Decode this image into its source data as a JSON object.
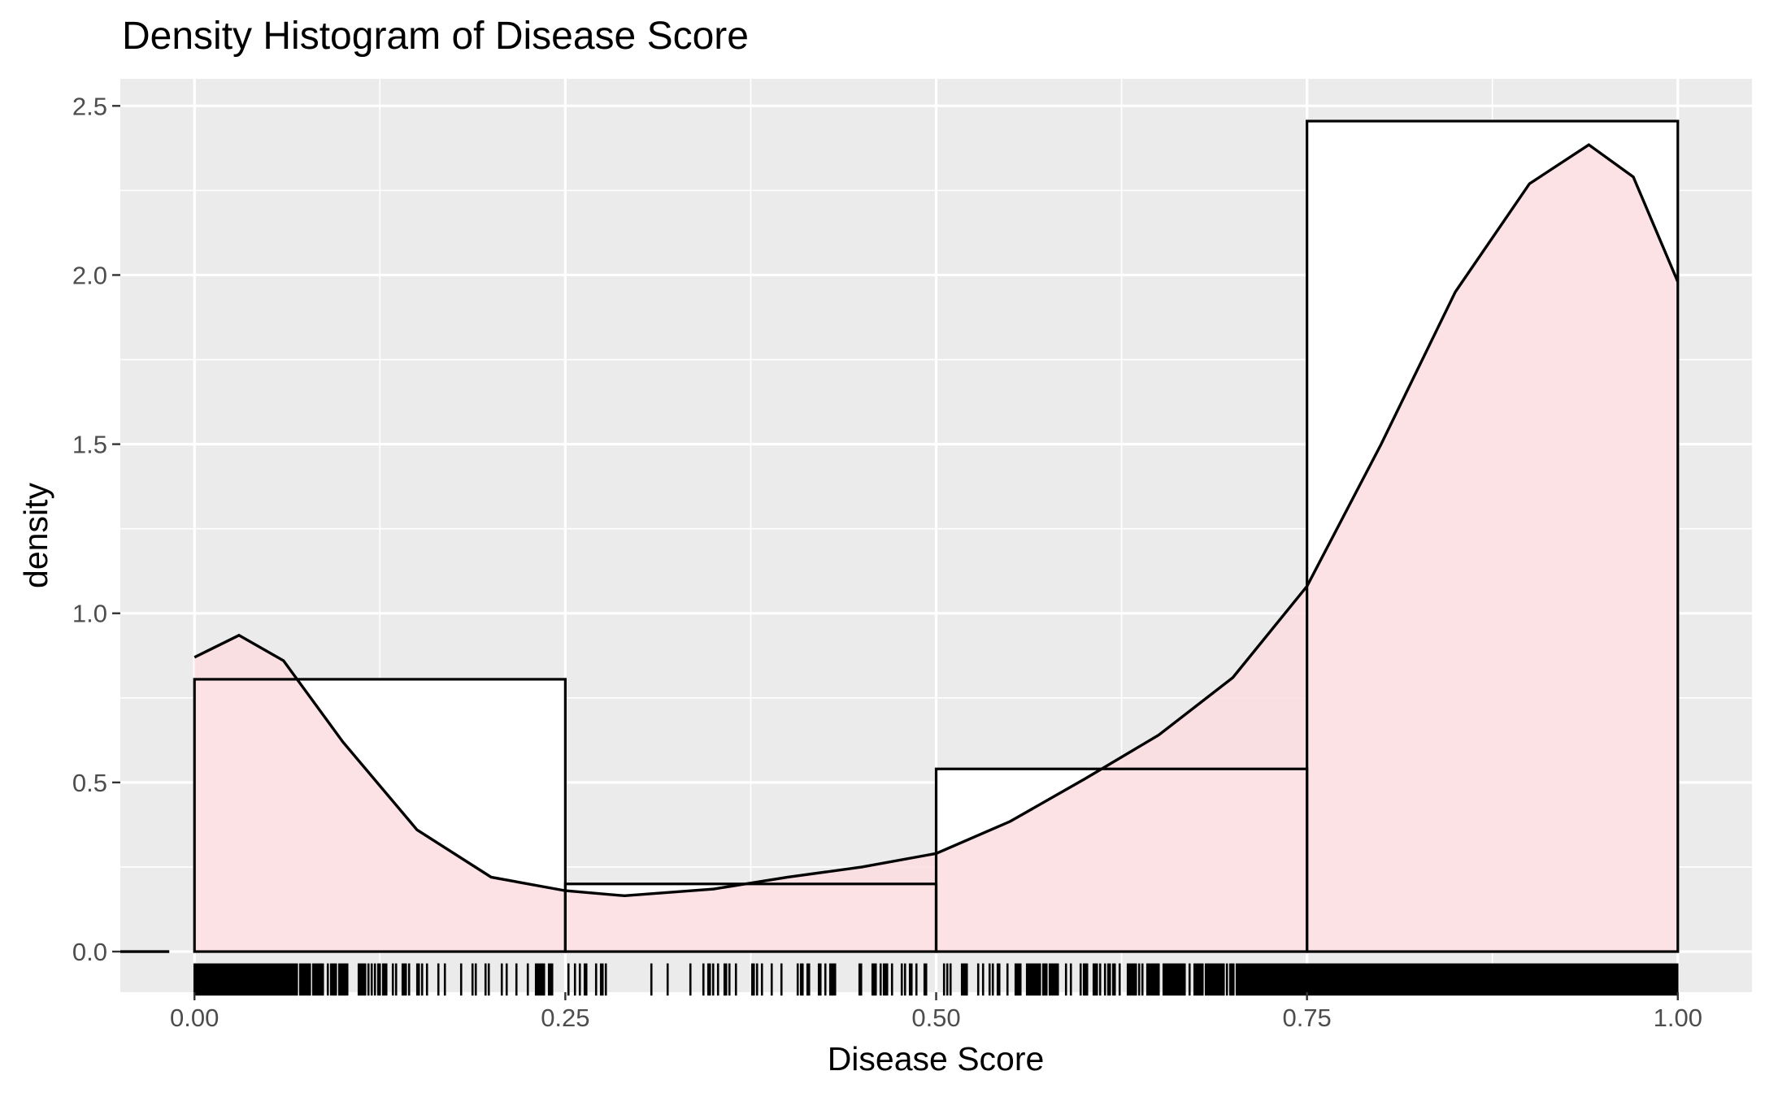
{
  "chart_data": {
    "type": "histogram",
    "title": "Density Histogram of Disease Score",
    "xlabel": "Disease Score",
    "ylabel": "density",
    "xlim": [
      -0.05,
      1.05
    ],
    "ylim": [
      -0.12,
      2.58
    ],
    "x_ticks": [
      {
        "value": 0.0,
        "label": "0.00"
      },
      {
        "value": 0.25,
        "label": "0.25"
      },
      {
        "value": 0.5,
        "label": "0.50"
      },
      {
        "value": 0.75,
        "label": "0.75"
      },
      {
        "value": 1.0,
        "label": "1.00"
      }
    ],
    "y_ticks": [
      {
        "value": 0.0,
        "label": "0.0"
      },
      {
        "value": 0.5,
        "label": "0.5"
      },
      {
        "value": 1.0,
        "label": "1.0"
      },
      {
        "value": 1.5,
        "label": "1.5"
      },
      {
        "value": 2.0,
        "label": "2.0"
      },
      {
        "value": 2.5,
        "label": "2.5"
      }
    ],
    "bins": [
      {
        "x0": 0.0,
        "x1": 0.25,
        "density": 0.805
      },
      {
        "x0": 0.25,
        "x1": 0.5,
        "density": 0.2
      },
      {
        "x0": 0.5,
        "x1": 0.75,
        "density": 0.54
      },
      {
        "x0": 0.75,
        "x1": 1.0,
        "density": 2.455
      }
    ],
    "density_curve": {
      "x": [
        0.0,
        0.03,
        0.06,
        0.1,
        0.15,
        0.2,
        0.25,
        0.29,
        0.35,
        0.4,
        0.45,
        0.5,
        0.55,
        0.6,
        0.65,
        0.7,
        0.75,
        0.8,
        0.85,
        0.9,
        0.94,
        0.97,
        1.0
      ],
      "y": [
        0.87,
        0.935,
        0.86,
        0.62,
        0.36,
        0.22,
        0.18,
        0.165,
        0.185,
        0.22,
        0.25,
        0.29,
        0.385,
        0.51,
        0.64,
        0.81,
        1.08,
        1.5,
        1.95,
        2.27,
        2.385,
        2.29,
        1.98
      ],
      "fill": "#fcdde0",
      "line": "#000000"
    },
    "rug": {
      "y_band": [
        -0.13,
        -0.035
      ]
    },
    "colors": {
      "panel_background": "#ebebeb",
      "grid": "#ffffff",
      "bar_fill": "#ffffff",
      "bar_outline": "#000000",
      "density_fill": "#fcdde0"
    },
    "legend": "none",
    "grid": true
  }
}
